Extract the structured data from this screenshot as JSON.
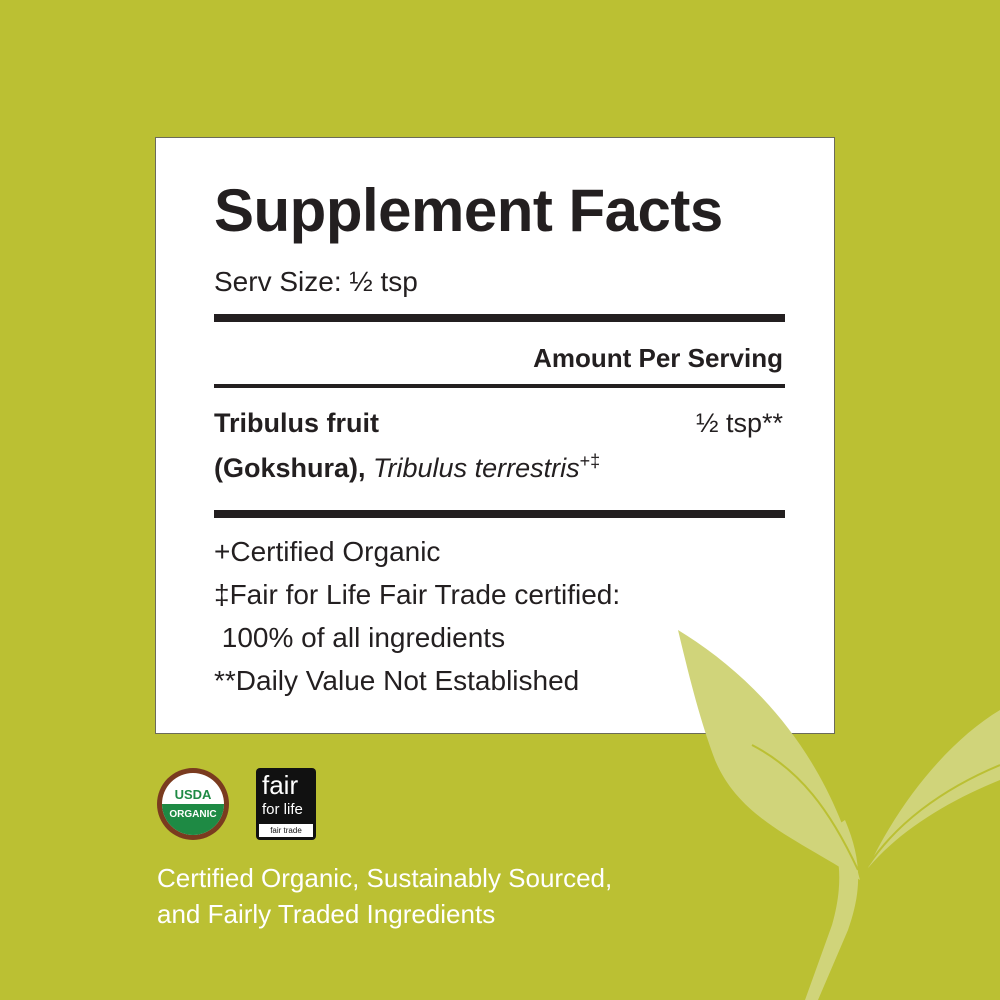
{
  "panel": {
    "title": "Supplement Facts",
    "serving_size": "Serv Size: ½ tsp",
    "amount_header": "Amount Per Serving",
    "ingredient": {
      "name_line1": "Tribulus fruit",
      "common_name": "(Gokshura),",
      "latin_name": "Tribulus terrestris",
      "marks": "+‡",
      "amount": "½ tsp**"
    },
    "footnotes": [
      "+Certified Organic",
      "‡Fair for Life Fair Trade certified:",
      " 100% of all ingredients",
      "**Daily Value Not Established"
    ]
  },
  "badges": {
    "usda": {
      "line1": "USDA",
      "line2": "ORGANIC"
    },
    "fair_for_life": {
      "line1": "fair",
      "line2": "for life",
      "line3": "fair trade"
    }
  },
  "caption": {
    "line1": "Certified Organic, Sustainably Sourced,",
    "line2": "and Fairly Traded Ingredients"
  },
  "colors": {
    "background": "#bbc033",
    "leaf": "#d0d47a",
    "text": "#231f20"
  }
}
